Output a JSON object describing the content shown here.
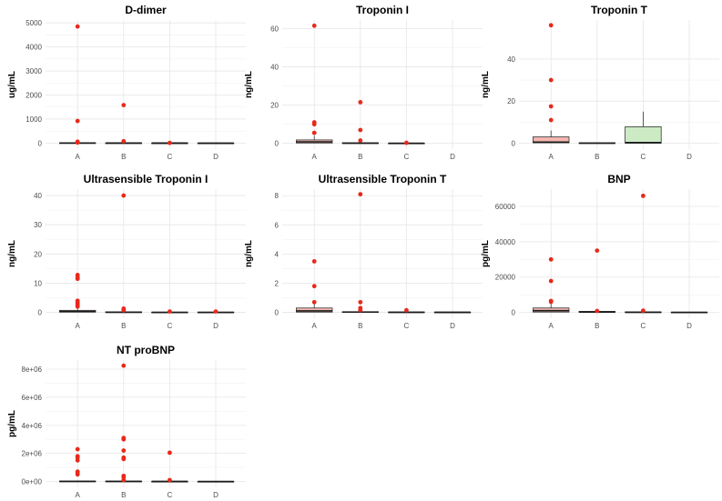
{
  "chart_data": [
    {
      "type": "box",
      "title": "D-dimer",
      "ylabel": "ug/mL",
      "categories": [
        "A",
        "B",
        "C",
        "D"
      ],
      "yticks": [
        0,
        1000,
        2000,
        3000,
        4000,
        5000
      ],
      "ytick_labels": [
        "0",
        "1000",
        "2000",
        "3000",
        "4000",
        "5000"
      ],
      "ylim": [
        -250,
        5120
      ],
      "boxes": [
        {
          "category": "A",
          "q1": 2,
          "median": 5,
          "q3": 12,
          "whisker_low": 0,
          "whisker_high": 25,
          "fill": "#f4b6b0"
        },
        {
          "category": "B",
          "q1": 1,
          "median": 3,
          "q3": 9,
          "whisker_low": 0,
          "whisker_high": 20,
          "fill": "#f4b6b0"
        },
        {
          "category": "C",
          "q1": 1,
          "median": 2,
          "q3": 5,
          "whisker_low": 0,
          "whisker_high": 10,
          "fill": "#f4b6b0"
        },
        {
          "category": "D",
          "q1": 0,
          "median": 1,
          "q3": 3,
          "whisker_low": 0,
          "whisker_high": 6,
          "fill": "#f4b6b0"
        }
      ],
      "outliers": {
        "A": [
          4850,
          920,
          60,
          20
        ],
        "B": [
          1580,
          80
        ],
        "C": [
          10
        ],
        "D": []
      }
    },
    {
      "type": "box",
      "title": "Troponin I",
      "ylabel": "ng/mL",
      "categories": [
        "A",
        "B",
        "C",
        "D"
      ],
      "yticks": [
        0,
        20,
        40,
        60
      ],
      "ytick_labels": [
        "0",
        "20",
        "40",
        "60"
      ],
      "ylim": [
        -3,
        64.5
      ],
      "boxes": [
        {
          "category": "A",
          "q1": 0.2,
          "median": 0.8,
          "q3": 1.8,
          "whisker_low": 0,
          "whisker_high": 4,
          "fill": "#f4b6b0"
        },
        {
          "category": "B",
          "q1": 0,
          "median": 0.1,
          "q3": 0.3,
          "whisker_low": 0,
          "whisker_high": 0.7,
          "fill": "#f4b6b0"
        },
        {
          "category": "C",
          "q1": 0,
          "median": 0.05,
          "q3": 0.15,
          "whisker_low": 0,
          "whisker_high": 0.3,
          "fill": "#f4b6b0"
        }
      ],
      "outliers": {
        "A": [
          61.5,
          11,
          10,
          5.5
        ],
        "B": [
          21.5,
          7,
          1.5
        ],
        "C": [
          0.3
        ],
        "D": []
      }
    },
    {
      "type": "box",
      "title": "Troponin T",
      "ylabel": "ng/mL",
      "categories": [
        "A",
        "B",
        "C",
        "D"
      ],
      "yticks": [
        0,
        20,
        40
      ],
      "ytick_labels": [
        "0",
        "20",
        "40"
      ],
      "ylim": [
        -2.8,
        58.5
      ],
      "boxes": [
        {
          "category": "A",
          "q1": 0.2,
          "median": 0.5,
          "q3": 3,
          "whisker_low": 0,
          "whisker_high": 6,
          "fill": "#f4b6b0"
        },
        {
          "category": "B",
          "q1": 0,
          "median": 0.05,
          "q3": 0.2,
          "whisker_low": 0,
          "whisker_high": 0.4,
          "fill": "#f4b6b0"
        },
        {
          "category": "C",
          "q1": 0,
          "median": 0.3,
          "q3": 7.8,
          "whisker_low": 0,
          "whisker_high": 15,
          "fill": "#ccebc5"
        }
      ],
      "outliers": {
        "A": [
          56,
          30,
          17.5,
          11
        ],
        "B": [],
        "C": [],
        "D": []
      }
    },
    {
      "type": "box",
      "title": "Ultrasensible Troponin I",
      "ylabel": "ng/mL",
      "categories": [
        "A",
        "B",
        "C",
        "D"
      ],
      "yticks": [
        0,
        10,
        20,
        30,
        40
      ],
      "ytick_labels": [
        "0",
        "10",
        "20",
        "30",
        "40"
      ],
      "ylim": [
        -2,
        42.2
      ],
      "boxes": [
        {
          "category": "A",
          "q1": 0.1,
          "median": 0.3,
          "q3": 0.7,
          "whisker_low": 0,
          "whisker_high": 1.5,
          "fill": "#f4b6b0"
        },
        {
          "category": "B",
          "q1": 0,
          "median": 0.05,
          "q3": 0.2,
          "whisker_low": 0,
          "whisker_high": 0.4,
          "fill": "#f4b6b0"
        },
        {
          "category": "C",
          "q1": 0,
          "median": 0.02,
          "q3": 0.1,
          "whisker_low": 0,
          "whisker_high": 0.2,
          "fill": "#f4b6b0"
        },
        {
          "category": "D",
          "q1": 0,
          "median": 0.02,
          "q3": 0.1,
          "whisker_low": 0,
          "whisker_high": 0.2,
          "fill": "#f4b6b0"
        }
      ],
      "outliers": {
        "A": [
          12.8,
          12,
          11.5,
          4,
          3.5,
          3,
          2.5,
          2
        ],
        "B": [
          40,
          1.3,
          1,
          0.7
        ],
        "C": [
          0.3
        ],
        "D": [
          0.3
        ]
      }
    },
    {
      "type": "box",
      "title": "Ultrasensible Troponin T",
      "ylabel": "ng/mL",
      "categories": [
        "A",
        "B",
        "C",
        "D"
      ],
      "yticks": [
        0,
        2,
        4,
        6,
        8
      ],
      "ytick_labels": [
        "0",
        "2",
        "4",
        "6",
        "8"
      ],
      "ylim": [
        -0.4,
        8.45
      ],
      "boxes": [
        {
          "category": "A",
          "q1": 0.02,
          "median": 0.1,
          "q3": 0.3,
          "whisker_low": 0,
          "whisker_high": 0.6,
          "fill": "#f4b6b0"
        },
        {
          "category": "B",
          "q1": 0,
          "median": 0.02,
          "q3": 0.05,
          "whisker_low": 0,
          "whisker_high": 0.1,
          "fill": "#f4b6b0"
        },
        {
          "category": "C",
          "q1": 0,
          "median": 0.01,
          "q3": 0.03,
          "whisker_low": 0,
          "whisker_high": 0.06,
          "fill": "#f4b6b0"
        },
        {
          "category": "D",
          "q1": 0,
          "median": 0.01,
          "q3": 0.02,
          "whisker_low": 0,
          "whisker_high": 0.04,
          "fill": "#f4b6b0"
        }
      ],
      "outliers": {
        "A": [
          3.5,
          1.8,
          0.7
        ],
        "B": [
          8.1,
          0.7,
          0.3,
          0.15
        ],
        "C": [
          0.15
        ],
        "D": []
      }
    },
    {
      "type": "box",
      "title": "BNP",
      "ylabel": "pg/mL",
      "categories": [
        "A",
        "B",
        "C",
        "D"
      ],
      "yticks": [
        0,
        20000,
        40000,
        60000
      ],
      "ytick_labels": [
        "0",
        "20000",
        "40000",
        "60000"
      ],
      "ylim": [
        -3300,
        69800
      ],
      "boxes": [
        {
          "category": "A",
          "q1": 200,
          "median": 1000,
          "q3": 2500,
          "whisker_low": 0,
          "whisker_high": 5000,
          "fill": "#f4b6b0"
        },
        {
          "category": "B",
          "q1": 50,
          "median": 200,
          "q3": 600,
          "whisker_low": 0,
          "whisker_high": 1200,
          "fill": "#f4b6b0"
        },
        {
          "category": "C",
          "q1": 20,
          "median": 100,
          "q3": 300,
          "whisker_low": 0,
          "whisker_high": 600,
          "fill": "#f4b6b0"
        },
        {
          "category": "D",
          "q1": 10,
          "median": 50,
          "q3": 150,
          "whisker_low": 0,
          "whisker_high": 300,
          "fill": "#f4b6b0"
        }
      ],
      "outliers": {
        "A": [
          30000,
          17800,
          6500,
          6000
        ],
        "B": [
          35000,
          800
        ],
        "C": [
          66000,
          1000
        ],
        "D": []
      }
    },
    {
      "type": "box",
      "title": "NT proBNP",
      "ylabel": "pg/mL",
      "categories": [
        "A",
        "B",
        "C",
        "D"
      ],
      "yticks": [
        0,
        2000000,
        4000000,
        6000000,
        8000000
      ],
      "ytick_labels": [
        "0e+00",
        "2e+06",
        "4e+06",
        "6e+06",
        "8e+06"
      ],
      "ylim": [
        -420000,
        8650000
      ],
      "boxes": [
        {
          "category": "A",
          "q1": 1000,
          "median": 5000,
          "q3": 30000,
          "whisker_low": 0,
          "whisker_high": 70000,
          "fill": "#f4b6b0"
        },
        {
          "category": "B",
          "q1": 1000,
          "median": 4000,
          "q3": 25000,
          "whisker_low": 0,
          "whisker_high": 60000,
          "fill": "#f4b6b0"
        },
        {
          "category": "C",
          "q1": 500,
          "median": 2000,
          "q3": 10000,
          "whisker_low": 0,
          "whisker_high": 25000,
          "fill": "#f4b6b0"
        },
        {
          "category": "D",
          "q1": 200,
          "median": 1000,
          "q3": 5000,
          "whisker_low": 0,
          "whisker_high": 12000,
          "fill": "#f4b6b0"
        }
      ],
      "outliers": {
        "A": [
          2300000,
          1800000,
          1700000,
          1500000,
          700000,
          600000,
          500000
        ],
        "B": [
          8250000,
          3100000,
          3000000,
          2200000,
          1700000,
          1600000,
          400000,
          300000,
          100000
        ],
        "C": [
          2050000,
          100000
        ],
        "D": []
      }
    }
  ]
}
